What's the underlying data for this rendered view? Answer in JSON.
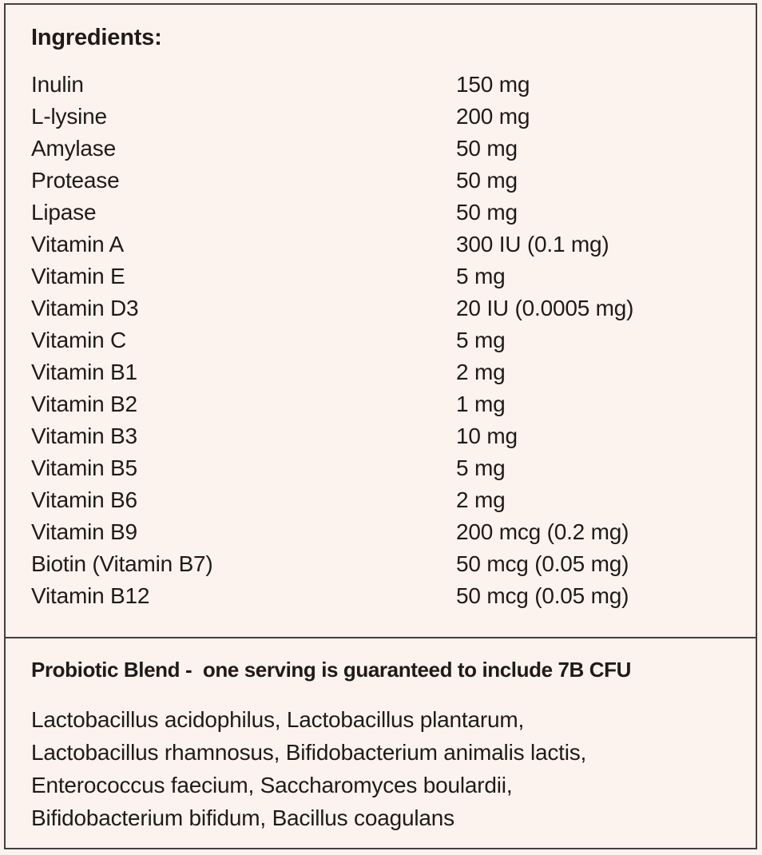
{
  "colors": {
    "background": "#fcf3ee",
    "text": "#1e1b19",
    "border": "#45403c"
  },
  "ingredients": {
    "title": "Ingredients:",
    "items": [
      {
        "name": "Inulin",
        "amount": "150 mg"
      },
      {
        "name": "L-lysine",
        "amount": "200 mg"
      },
      {
        "name": "Amylase",
        "amount": "50 mg"
      },
      {
        "name": "Protease",
        "amount": "50 mg"
      },
      {
        "name": "Lipase",
        "amount": "50 mg"
      },
      {
        "name": "Vitamin A",
        "amount": "300 IU (0.1 mg)"
      },
      {
        "name": "Vitamin E",
        "amount": "5 mg"
      },
      {
        "name": "Vitamin D3",
        "amount": "20 IU (0.0005 mg)"
      },
      {
        "name": "Vitamin C",
        "amount": "5 mg"
      },
      {
        "name": "Vitamin B1",
        "amount": "2 mg"
      },
      {
        "name": "Vitamin B2",
        "amount": "1 mg"
      },
      {
        "name": "Vitamin B3",
        "amount": "10 mg"
      },
      {
        "name": "Vitamin B5",
        "amount": "5 mg"
      },
      {
        "name": "Vitamin B6",
        "amount": "2 mg"
      },
      {
        "name": "Vitamin B9",
        "amount": "200 mcg (0.2 mg)"
      },
      {
        "name": "Biotin (Vitamin B7)",
        "amount": "50 mcg (0.05 mg)"
      },
      {
        "name": "Vitamin B12",
        "amount": "50 mcg (0.05 mg)"
      }
    ]
  },
  "probiotic": {
    "title": "Probiotic Blend -  one serving is guaranteed to include 7B CFU",
    "lines": [
      "Lactobacillus acidophilus, Lactobacillus plantarum,",
      "Lactobacillus rhamnosus, Bifidobacterium animalis lactis,",
      "Enterococcus faecium, Saccharomyces boulardii,",
      "Bifidobacterium bifidum, Bacillus coagulans"
    ]
  }
}
